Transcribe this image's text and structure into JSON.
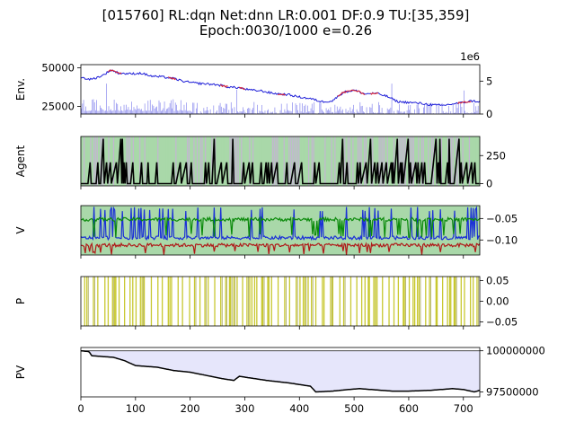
{
  "figure": {
    "title_line1": "[015760] RL:dqn Net:dnn LR:0.001 DF:0.9 TU:[35,359]",
    "title_line2": "Epoch:0030/1000 e=0.26"
  },
  "colors": {
    "price": "#1f1fd8",
    "price_highlight": "#e0202a",
    "volume": "#8888ee",
    "agent_bg_green": "#a9d8a9",
    "agent_bg_purple": "#cfa9e3",
    "agent_line": "#000000",
    "v_blue": "#1a2fd8",
    "v_red": "#b01818",
    "v_green": "#0a8a0a",
    "p_line": "#c8c830",
    "pv_fill": "#e6e6fb",
    "pv_line": "#000000"
  },
  "chart_data": [
    {
      "panel": "env",
      "type": "line",
      "ylabel": "Env.",
      "x_range": [
        0,
        730
      ],
      "ylim": [
        20000,
        52000
      ],
      "y_ticks": [
        "25000",
        "50000"
      ],
      "y_tick_values": [
        25000,
        50000
      ],
      "secondary_y": {
        "offset_label": "1e6",
        "ticks": [
          "0",
          "5"
        ],
        "tick_values": [
          0,
          5
        ],
        "ylim": [
          0,
          7.5
        ]
      },
      "series": [
        {
          "values": [
            [
              0,
              43500
            ],
            [
              20,
              42500
            ],
            [
              40,
              45000
            ],
            [
              55,
              48500
            ],
            [
              70,
              46500
            ],
            [
              90,
              46000
            ],
            [
              110,
              46500
            ],
            [
              130,
              44500
            ],
            [
              150,
              44000
            ],
            [
              170,
              43000
            ],
            [
              190,
              41000
            ],
            [
              210,
              40000
            ],
            [
              230,
              39500
            ],
            [
              250,
              39000
            ],
            [
              270,
              37500
            ],
            [
              290,
              37000
            ],
            [
              310,
              35500
            ],
            [
              330,
              35000
            ],
            [
              350,
              33500
            ],
            [
              380,
              32500
            ],
            [
              400,
              31000
            ],
            [
              420,
              30000
            ],
            [
              440,
              28000
            ],
            [
              460,
              28500
            ],
            [
              480,
              34000
            ],
            [
              500,
              35500
            ],
            [
              520,
              33000
            ],
            [
              540,
              33500
            ],
            [
              560,
              31500
            ],
            [
              580,
              28000
            ],
            [
              600,
              27500
            ],
            [
              620,
              27000
            ],
            [
              640,
              26000
            ],
            [
              660,
              25500
            ],
            [
              680,
              26500
            ],
            [
              700,
              27500
            ],
            [
              715,
              28500
            ],
            [
              730,
              28000
            ]
          ]
        }
      ]
    },
    {
      "panel": "agent",
      "type": "line",
      "ylabel": "Agent",
      "x_range": [
        0,
        730
      ],
      "ylim": [
        -20,
        420
      ],
      "y_ticks": [
        "0",
        "250"
      ],
      "y_tick_values": [
        0,
        250
      ]
    },
    {
      "panel": "v",
      "type": "line",
      "ylabel": "V",
      "x_range": [
        0,
        730
      ],
      "ylim": [
        -0.135,
        -0.02
      ],
      "y_ticks": [
        "−0.05",
        "−0.10"
      ],
      "y_tick_values": [
        -0.05,
        -0.1
      ]
    },
    {
      "panel": "p",
      "type": "line",
      "ylabel": "P",
      "x_range": [
        0,
        730
      ],
      "ylim": [
        -0.06,
        0.06
      ],
      "y_ticks": [
        "0.05",
        "0.00",
        "−0.05"
      ],
      "y_tick_values": [
        0.05,
        0.0,
        -0.05
      ]
    },
    {
      "panel": "pv",
      "type": "line",
      "ylabel": "PV",
      "x_range": [
        0,
        730
      ],
      "ylim": [
        97200000,
        100200000
      ],
      "y_ticks": [
        "100000000",
        "97500000"
      ],
      "y_tick_values": [
        100000000,
        97500000
      ],
      "x_ticks": [
        "0",
        "100",
        "200",
        "300",
        "400",
        "500",
        "600",
        "700"
      ],
      "x_tick_values": [
        0,
        100,
        200,
        300,
        400,
        500,
        600,
        700
      ],
      "series": [
        {
          "values": [
            [
              0,
              100000000
            ],
            [
              15,
              99950000
            ],
            [
              20,
              99700000
            ],
            [
              60,
              99600000
            ],
            [
              80,
              99400000
            ],
            [
              100,
              99100000
            ],
            [
              140,
              99000000
            ],
            [
              170,
              98800000
            ],
            [
              200,
              98700000
            ],
            [
              230,
              98500000
            ],
            [
              260,
              98300000
            ],
            [
              280,
              98200000
            ],
            [
              290,
              98450000
            ],
            [
              320,
              98300000
            ],
            [
              340,
              98200000
            ],
            [
              380,
              98050000
            ],
            [
              420,
              97850000
            ],
            [
              430,
              97500000
            ],
            [
              460,
              97550000
            ],
            [
              490,
              97650000
            ],
            [
              510,
              97700000
            ],
            [
              530,
              97650000
            ],
            [
              570,
              97550000
            ],
            [
              600,
              97550000
            ],
            [
              640,
              97600000
            ],
            [
              680,
              97700000
            ],
            [
              700,
              97650000
            ],
            [
              720,
              97500000
            ],
            [
              730,
              97600000
            ]
          ]
        }
      ]
    }
  ]
}
